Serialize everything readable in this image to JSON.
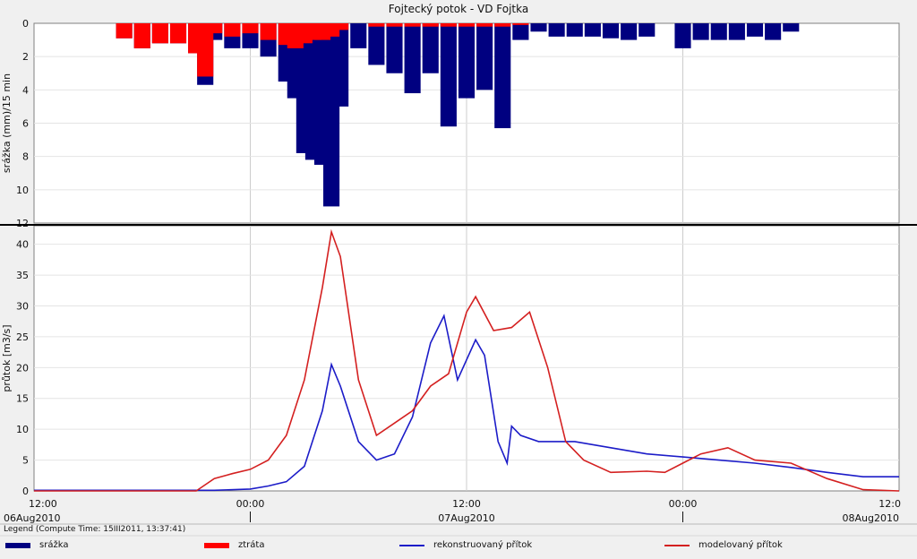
{
  "chart_data": [
    {
      "type": "bar",
      "title": "Fojtecký potok - VD Fojtka",
      "ylabel": "srážka (mm)/15 min",
      "ylim": [
        0,
        12
      ],
      "y_inverted": true,
      "yticks": [
        0,
        2,
        4,
        6,
        8,
        10,
        12
      ],
      "xlim": [
        "2010-08-06 12:00",
        "2010-08-08 12:00"
      ],
      "grid": true,
      "stacked": true,
      "interval_minutes": 60,
      "series": [
        {
          "name": "srážka",
          "color": "#000080",
          "points": [
            {
              "t": "2010-08-06 17:00",
              "v": 0.9
            },
            {
              "t": "2010-08-06 18:00",
              "v": 1.5
            },
            {
              "t": "2010-08-06 19:00",
              "v": 1.2
            },
            {
              "t": "2010-08-06 20:00",
              "v": 1.2
            },
            {
              "t": "2010-08-06 21:00",
              "v": 1.8
            },
            {
              "t": "2010-08-06 21:30",
              "v": 3.7
            },
            {
              "t": "2010-08-06 22:00",
              "v": 1.0
            },
            {
              "t": "2010-08-06 23:00",
              "v": 1.5
            },
            {
              "t": "2010-08-07 00:00",
              "v": 1.5
            },
            {
              "t": "2010-08-07 01:00",
              "v": 2.0
            },
            {
              "t": "2010-08-07 02:00",
              "v": 3.5
            },
            {
              "t": "2010-08-07 02:30",
              "v": 4.5
            },
            {
              "t": "2010-08-07 03:00",
              "v": 7.8
            },
            {
              "t": "2010-08-07 03:30",
              "v": 8.2
            },
            {
              "t": "2010-08-07 04:00",
              "v": 8.5
            },
            {
              "t": "2010-08-07 04:30",
              "v": 11.0
            },
            {
              "t": "2010-08-07 05:00",
              "v": 5.0
            },
            {
              "t": "2010-08-07 06:00",
              "v": 1.5
            },
            {
              "t": "2010-08-07 07:00",
              "v": 2.5
            },
            {
              "t": "2010-08-07 08:00",
              "v": 3.0
            },
            {
              "t": "2010-08-07 09:00",
              "v": 4.2
            },
            {
              "t": "2010-08-07 10:00",
              "v": 3.0
            },
            {
              "t": "2010-08-07 11:00",
              "v": 6.2
            },
            {
              "t": "2010-08-07 12:00",
              "v": 4.5
            },
            {
              "t": "2010-08-07 13:00",
              "v": 4.0
            },
            {
              "t": "2010-08-07 14:00",
              "v": 6.3
            },
            {
              "t": "2010-08-07 15:00",
              "v": 1.0
            },
            {
              "t": "2010-08-07 16:00",
              "v": 0.5
            },
            {
              "t": "2010-08-07 17:00",
              "v": 0.8
            },
            {
              "t": "2010-08-07 18:00",
              "v": 0.8
            },
            {
              "t": "2010-08-07 19:00",
              "v": 0.8
            },
            {
              "t": "2010-08-07 20:00",
              "v": 0.9
            },
            {
              "t": "2010-08-07 21:00",
              "v": 1.0
            },
            {
              "t": "2010-08-07 22:00",
              "v": 0.8
            },
            {
              "t": "2010-08-08 00:00",
              "v": 1.5
            },
            {
              "t": "2010-08-08 01:00",
              "v": 1.0
            },
            {
              "t": "2010-08-08 02:00",
              "v": 1.0
            },
            {
              "t": "2010-08-08 03:00",
              "v": 1.0
            },
            {
              "t": "2010-08-08 04:00",
              "v": 0.8
            },
            {
              "t": "2010-08-08 05:00",
              "v": 1.0
            },
            {
              "t": "2010-08-08 06:00",
              "v": 0.5
            }
          ]
        },
        {
          "name": "ztráta",
          "color": "#ff0000",
          "points": [
            {
              "t": "2010-08-06 17:00",
              "v": 0.9
            },
            {
              "t": "2010-08-06 18:00",
              "v": 1.5
            },
            {
              "t": "2010-08-06 19:00",
              "v": 1.2
            },
            {
              "t": "2010-08-06 20:00",
              "v": 1.2
            },
            {
              "t": "2010-08-06 21:00",
              "v": 1.8
            },
            {
              "t": "2010-08-06 21:30",
              "v": 3.2
            },
            {
              "t": "2010-08-06 22:00",
              "v": 0.6
            },
            {
              "t": "2010-08-06 23:00",
              "v": 0.8
            },
            {
              "t": "2010-08-07 00:00",
              "v": 0.6
            },
            {
              "t": "2010-08-07 01:00",
              "v": 1.0
            },
            {
              "t": "2010-08-07 02:00",
              "v": 1.3
            },
            {
              "t": "2010-08-07 02:30",
              "v": 1.5
            },
            {
              "t": "2010-08-07 03:00",
              "v": 1.2
            },
            {
              "t": "2010-08-07 03:30",
              "v": 1.0
            },
            {
              "t": "2010-08-07 04:00",
              "v": 1.0
            },
            {
              "t": "2010-08-07 04:30",
              "v": 0.8
            },
            {
              "t": "2010-08-07 05:00",
              "v": 0.4
            },
            {
              "t": "2010-08-07 06:00",
              "v": 0.0
            },
            {
              "t": "2010-08-07 07:00",
              "v": 0.2
            },
            {
              "t": "2010-08-07 08:00",
              "v": 0.2
            },
            {
              "t": "2010-08-07 09:00",
              "v": 0.2
            },
            {
              "t": "2010-08-07 10:00",
              "v": 0.2
            },
            {
              "t": "2010-08-07 11:00",
              "v": 0.2
            },
            {
              "t": "2010-08-07 12:00",
              "v": 0.2
            },
            {
              "t": "2010-08-07 13:00",
              "v": 0.2
            },
            {
              "t": "2010-08-07 14:00",
              "v": 0.2
            },
            {
              "t": "2010-08-07 15:00",
              "v": 0.1
            },
            {
              "t": "2010-08-07 16:00",
              "v": 0.0
            },
            {
              "t": "2010-08-07 17:00",
              "v": 0.0
            },
            {
              "t": "2010-08-07 18:00",
              "v": 0.0
            },
            {
              "t": "2010-08-07 19:00",
              "v": 0.0
            },
            {
              "t": "2010-08-07 20:00",
              "v": 0.0
            },
            {
              "t": "2010-08-07 21:00",
              "v": 0.0
            },
            {
              "t": "2010-08-07 22:00",
              "v": 0.0
            },
            {
              "t": "2010-08-08 00:00",
              "v": 0.0
            },
            {
              "t": "2010-08-08 01:00",
              "v": 0.0
            },
            {
              "t": "2010-08-08 02:00",
              "v": 0.0
            },
            {
              "t": "2010-08-08 03:00",
              "v": 0.0
            },
            {
              "t": "2010-08-08 04:00",
              "v": 0.0
            },
            {
              "t": "2010-08-08 05:00",
              "v": 0.0
            },
            {
              "t": "2010-08-08 06:00",
              "v": 0.0
            }
          ]
        }
      ]
    },
    {
      "type": "line",
      "title": "",
      "ylabel": "průtok [m3/s]",
      "ylim": [
        0,
        43
      ],
      "yticks": [
        0,
        5,
        10,
        15,
        20,
        25,
        30,
        35,
        40
      ],
      "xlim": [
        "2010-08-06 12:00",
        "2010-08-08 12:00"
      ],
      "xticks": [
        {
          "t": "2010-08-06 12:00",
          "label": "12:00",
          "date": "06Aug2010"
        },
        {
          "t": "2010-08-07 00:00",
          "label": "00:00",
          "date": ""
        },
        {
          "t": "2010-08-07 12:00",
          "label": "12:00",
          "date": "07Aug2010"
        },
        {
          "t": "2010-08-08 00:00",
          "label": "00:00",
          "date": ""
        },
        {
          "t": "2010-08-08 12:00",
          "label": "12:0",
          "date": "08Aug2010"
        }
      ],
      "grid": true,
      "series": [
        {
          "name": "rekonstruovaný přítok",
          "color": "#1c1cc8",
          "points": [
            {
              "t": "2010-08-06 12:00",
              "v": 0.1
            },
            {
              "t": "2010-08-06 22:00",
              "v": 0.1
            },
            {
              "t": "2010-08-07 00:00",
              "v": 0.3
            },
            {
              "t": "2010-08-07 01:00",
              "v": 0.8
            },
            {
              "t": "2010-08-07 02:00",
              "v": 1.5
            },
            {
              "t": "2010-08-07 03:00",
              "v": 4.0
            },
            {
              "t": "2010-08-07 04:00",
              "v": 13.0
            },
            {
              "t": "2010-08-07 04:30",
              "v": 20.5
            },
            {
              "t": "2010-08-07 05:00",
              "v": 17.0
            },
            {
              "t": "2010-08-07 06:00",
              "v": 8.0
            },
            {
              "t": "2010-08-07 07:00",
              "v": 5.0
            },
            {
              "t": "2010-08-07 08:00",
              "v": 6.0
            },
            {
              "t": "2010-08-07 09:00",
              "v": 12.0
            },
            {
              "t": "2010-08-07 10:00",
              "v": 24.0
            },
            {
              "t": "2010-08-07 10:45",
              "v": 28.4
            },
            {
              "t": "2010-08-07 11:30",
              "v": 18.0
            },
            {
              "t": "2010-08-07 12:30",
              "v": 24.5
            },
            {
              "t": "2010-08-07 13:00",
              "v": 22.0
            },
            {
              "t": "2010-08-07 13:45",
              "v": 8.0
            },
            {
              "t": "2010-08-07 14:15",
              "v": 4.5
            },
            {
              "t": "2010-08-07 14:30",
              "v": 10.5
            },
            {
              "t": "2010-08-07 15:00",
              "v": 9.0
            },
            {
              "t": "2010-08-07 16:00",
              "v": 8.0
            },
            {
              "t": "2010-08-07 18:00",
              "v": 8.0
            },
            {
              "t": "2010-08-07 20:00",
              "v": 7.0
            },
            {
              "t": "2010-08-07 22:00",
              "v": 6.0
            },
            {
              "t": "2010-08-08 00:00",
              "v": 5.5
            },
            {
              "t": "2010-08-08 02:00",
              "v": 5.0
            },
            {
              "t": "2010-08-08 04:00",
              "v": 4.5
            },
            {
              "t": "2010-08-08 06:00",
              "v": 3.8
            },
            {
              "t": "2010-08-08 08:00",
              "v": 3.0
            },
            {
              "t": "2010-08-08 10:00",
              "v": 2.3
            },
            {
              "t": "2010-08-08 12:00",
              "v": 2.3
            }
          ]
        },
        {
          "name": "modelovaný přítok",
          "color": "#d42020",
          "points": [
            {
              "t": "2010-08-06 12:00",
              "v": 0.0
            },
            {
              "t": "2010-08-06 21:00",
              "v": 0.0
            },
            {
              "t": "2010-08-06 22:00",
              "v": 2.0
            },
            {
              "t": "2010-08-06 23:00",
              "v": 2.8
            },
            {
              "t": "2010-08-07 00:00",
              "v": 3.5
            },
            {
              "t": "2010-08-07 01:00",
              "v": 5.0
            },
            {
              "t": "2010-08-07 02:00",
              "v": 9.0
            },
            {
              "t": "2010-08-07 03:00",
              "v": 18.0
            },
            {
              "t": "2010-08-07 04:00",
              "v": 33.0
            },
            {
              "t": "2010-08-07 04:30",
              "v": 42.0
            },
            {
              "t": "2010-08-07 05:00",
              "v": 38.0
            },
            {
              "t": "2010-08-07 06:00",
              "v": 18.0
            },
            {
              "t": "2010-08-07 07:00",
              "v": 9.0
            },
            {
              "t": "2010-08-07 08:00",
              "v": 11.0
            },
            {
              "t": "2010-08-07 09:00",
              "v": 13.0
            },
            {
              "t": "2010-08-07 10:00",
              "v": 17.0
            },
            {
              "t": "2010-08-07 11:00",
              "v": 19.0
            },
            {
              "t": "2010-08-07 12:00",
              "v": 29.0
            },
            {
              "t": "2010-08-07 12:30",
              "v": 31.5
            },
            {
              "t": "2010-08-07 13:30",
              "v": 26.0
            },
            {
              "t": "2010-08-07 14:30",
              "v": 26.5
            },
            {
              "t": "2010-08-07 15:30",
              "v": 29.0
            },
            {
              "t": "2010-08-07 16:30",
              "v": 20.0
            },
            {
              "t": "2010-08-07 17:30",
              "v": 8.0
            },
            {
              "t": "2010-08-07 18:30",
              "v": 5.0
            },
            {
              "t": "2010-08-07 20:00",
              "v": 3.0
            },
            {
              "t": "2010-08-07 22:00",
              "v": 3.2
            },
            {
              "t": "2010-08-07 23:00",
              "v": 3.0
            },
            {
              "t": "2010-08-08 00:00",
              "v": 4.5
            },
            {
              "t": "2010-08-08 01:00",
              "v": 6.0
            },
            {
              "t": "2010-08-08 02:30",
              "v": 7.0
            },
            {
              "t": "2010-08-08 04:00",
              "v": 5.0
            },
            {
              "t": "2010-08-08 06:00",
              "v": 4.5
            },
            {
              "t": "2010-08-08 08:00",
              "v": 2.0
            },
            {
              "t": "2010-08-08 10:00",
              "v": 0.2
            },
            {
              "t": "2010-08-08 12:00",
              "v": 0.0
            }
          ]
        }
      ]
    }
  ],
  "legend": {
    "compute_time": "Legend (Compute Time: 15III2011, 13:37:41)",
    "items": [
      {
        "label": "srážka",
        "color": "#000080",
        "style": "bar"
      },
      {
        "label": "ztráta",
        "color": "#ff0000",
        "style": "bar"
      },
      {
        "label": "rekonstruovaný přítok",
        "color": "#1c1cc8",
        "style": "line"
      },
      {
        "label": "modelovaný přítok",
        "color": "#d42020",
        "style": "line"
      }
    ]
  }
}
